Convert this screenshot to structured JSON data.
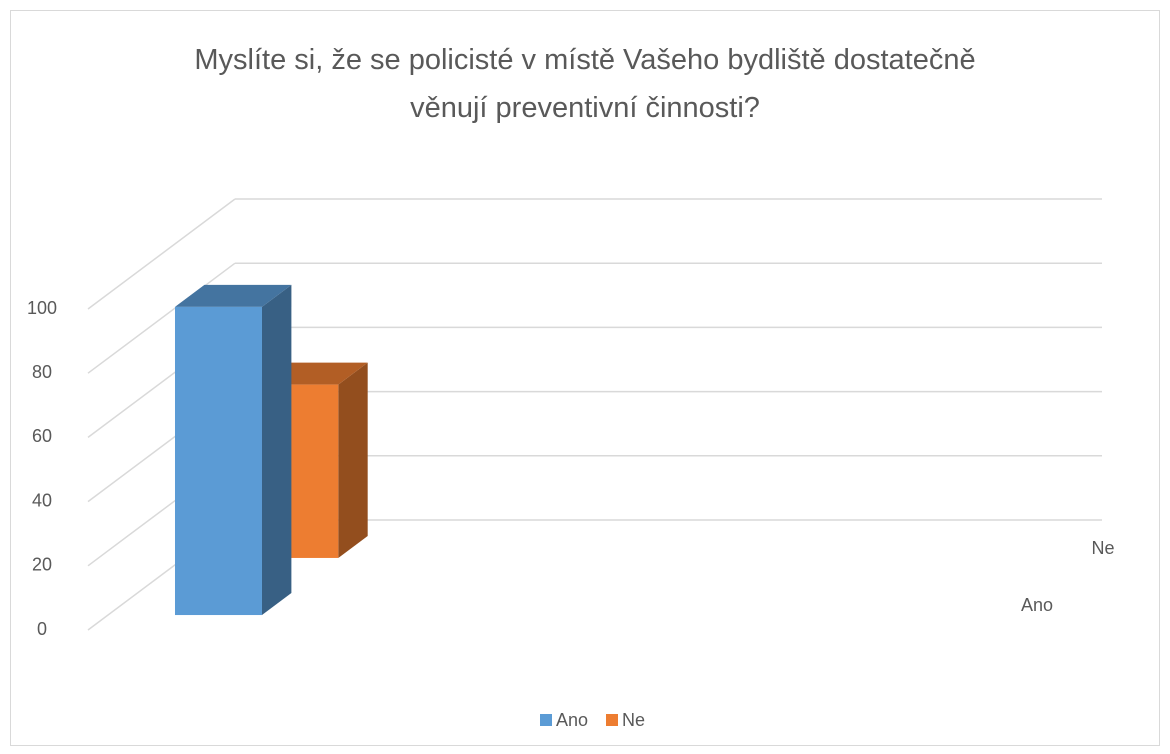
{
  "chart_data": {
    "type": "bar3d",
    "title": "Myslíte si, že se policisté v místě Vašeho bydliště dostatečně věnují preventivní činnosti?",
    "categories": [
      null
    ],
    "series": [
      {
        "name": "Ano",
        "color": "#5b9bd5",
        "values": [
          96
        ]
      },
      {
        "name": "Ne",
        "color": "#ed7d31",
        "values": [
          54
        ]
      }
    ],
    "ylim": [
      0,
      100
    ],
    "yticks": [
      0,
      20,
      40,
      60,
      80,
      100
    ],
    "grid": true,
    "legend": "bottom"
  }
}
